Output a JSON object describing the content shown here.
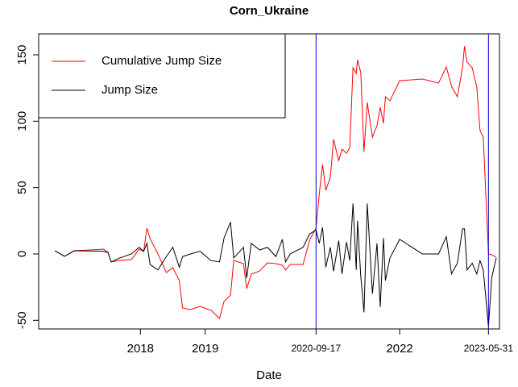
{
  "chart_data": {
    "type": "line",
    "title": "Corn_Ukraine",
    "xlabel": "Date",
    "x": [
      2016.68,
      2016.83,
      2016.98,
      2017.43,
      2017.5,
      2017.55,
      2017.68,
      2017.86,
      2017.98,
      2018.05,
      2018.1,
      2018.15,
      2018.27,
      2018.4,
      2018.5,
      2018.6,
      2018.65,
      2018.77,
      2018.92,
      2019.09,
      2019.22,
      2019.29,
      2019.39,
      2019.44,
      2019.59,
      2019.64,
      2019.71,
      2019.84,
      2019.96,
      2020.09,
      2020.19,
      2020.24,
      2020.31,
      2020.51,
      2020.61,
      2020.71,
      2020.76,
      2020.81,
      2020.86,
      2020.93,
      2020.98,
      2021.06,
      2021.11,
      2021.18,
      2021.23,
      2021.28,
      2021.33,
      2021.35,
      2021.4,
      2021.45,
      2021.5,
      2021.58,
      2021.65,
      2021.7,
      2021.75,
      2021.78,
      2021.85,
      2022.0,
      2022.35,
      2022.6,
      2022.72,
      2022.8,
      2022.89,
      2022.97,
      2023.0,
      2023.04,
      2023.12,
      2023.19,
      2023.24,
      2023.29,
      2023.37,
      2023.42,
      2023.49
    ],
    "series": [
      {
        "name": "Cumulative Jump Size",
        "color": "#ff0000",
        "values": [
          2.4,
          -1.8,
          2.4,
          3.6,
          1.2,
          -6,
          -4.9,
          -4.3,
          3.6,
          1.8,
          19.4,
          11.5,
          0,
          -14,
          -10.3,
          -20,
          -40.7,
          -41.9,
          -39.5,
          -42.5,
          -48.6,
          -35.8,
          -31,
          -4.9,
          -7.3,
          -26.1,
          -15.2,
          -12.8,
          -6.7,
          -7.3,
          -8.5,
          -12.1,
          -7.9,
          -7.9,
          10.3,
          19.4,
          45.5,
          67.4,
          48,
          57.7,
          86.2,
          70.4,
          78.9,
          75.9,
          80.1,
          140.3,
          136,
          146.3,
          136.6,
          77.1,
          114.1,
          88,
          96.5,
          110.5,
          98.4,
          118.4,
          115.4,
          130.5,
          131.8,
          128.7,
          140.9,
          126.3,
          118.4,
          140.3,
          156.6,
          144.5,
          140.3,
          125.7,
          92.9,
          88,
          0,
          -0.6,
          -2.4
        ]
      },
      {
        "name": "Jump Size",
        "color": "#000000",
        "values": [
          2.4,
          -1.8,
          2.4,
          2,
          1,
          -6,
          -3,
          0,
          5,
          2,
          8,
          -8,
          -12,
          -2,
          5,
          -10,
          -2,
          0,
          2,
          -5,
          -6,
          12,
          24,
          -3,
          5,
          -18,
          8,
          3,
          5,
          -2,
          11,
          -6,
          0,
          5,
          15,
          18,
          8,
          20,
          -10,
          5,
          -13,
          10,
          -15,
          9,
          -5,
          38,
          -12,
          25,
          -17,
          -44,
          38,
          -30,
          8,
          -40,
          12,
          -20,
          -3,
          11,
          0,
          0,
          13,
          -15,
          -7,
          19,
          19,
          -12,
          -7,
          -15,
          -5,
          -12,
          -55,
          -18,
          -3
        ]
      }
    ],
    "vlines": [
      2020.71,
      2023.37
    ],
    "vline_color": "#0000cc",
    "xlim": [
      2016.43,
      2023.54
    ],
    "xticks": [
      2018,
      2019,
      {
        "value": 2020.71,
        "label": "2020-09-17"
      },
      2022,
      {
        "value": 2023.37,
        "label": "2023-05-31"
      }
    ],
    "ylim": [
      -56.5,
      165.8
    ],
    "yticks": [
      -50,
      0,
      50,
      100,
      150
    ],
    "legend": "topleft"
  }
}
